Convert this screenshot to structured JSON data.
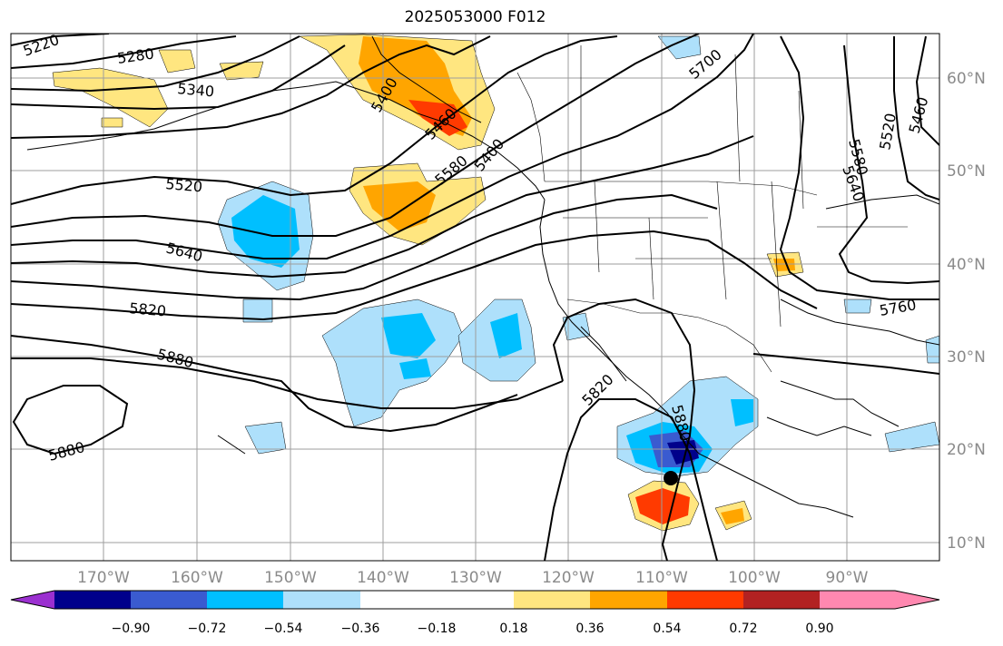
{
  "title": "2025053000 F012",
  "map": {
    "lon_ticks": [
      "170°W",
      "160°W",
      "150°W",
      "140°W",
      "130°W",
      "120°W",
      "110°W",
      "100°W",
      "90°W"
    ],
    "lat_ticks": [
      "60°N",
      "50°N",
      "40°N",
      "30°N",
      "20°N",
      "10°N"
    ],
    "contour_labels": [
      "5220",
      "5280",
      "5340",
      "5400",
      "5460",
      "5520",
      "5580",
      "5640",
      "5700",
      "5760",
      "5820",
      "5880",
      "5460",
      "5520",
      "5580",
      "5640",
      "5820",
      "5880",
      "5880",
      "5400"
    ],
    "marker": "storm-center-dot"
  },
  "colorbar": {
    "ticks": [
      "−0.90",
      "−0.72",
      "−0.54",
      "−0.36",
      "−0.18",
      "0.18",
      "0.36",
      "0.54",
      "0.72",
      "0.90"
    ],
    "colors": [
      "#9b30d0",
      "#00008b",
      "#3a5bd0",
      "#00bfff",
      "#aee0fb",
      "#ffffff",
      "#ffe680",
      "#ffa500",
      "#ff3a00",
      "#b22222",
      "#ff88b0"
    ]
  }
}
